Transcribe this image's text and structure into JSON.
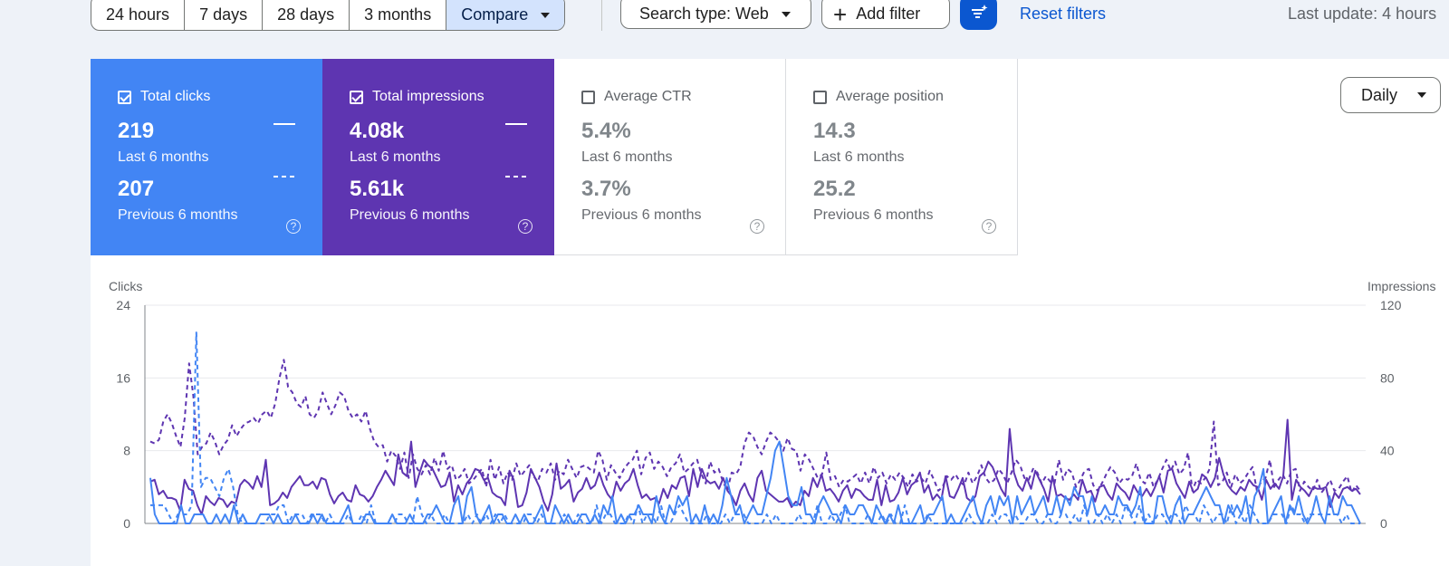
{
  "filters": {
    "date_ranges": [
      "24 hours",
      "7 days",
      "28 days",
      "3 months"
    ],
    "compare_label": "Compare",
    "search_type": "Search type: Web",
    "add_filter": "Add filter",
    "reset": "Reset filters",
    "last_update": "Last update: 4 hours"
  },
  "metrics": {
    "clicks": {
      "label": "Total clicks",
      "current": "219",
      "previous": "207",
      "period_current": "Last 6 months",
      "period_previous": "Previous 6 months",
      "checked": true,
      "color": "#4285f4"
    },
    "impressions": {
      "label": "Total impressions",
      "current": "4.08k",
      "previous": "5.61k",
      "period_current": "Last 6 months",
      "period_previous": "Previous 6 months",
      "checked": true,
      "color": "#5e35b1"
    },
    "ctr": {
      "label": "Average CTR",
      "current": "5.4%",
      "previous": "3.7%",
      "period_current": "Last 6 months",
      "period_previous": "Previous 6 months",
      "checked": false
    },
    "position": {
      "label": "Average position",
      "current": "14.3",
      "previous": "25.2",
      "period_current": "Last 6 months",
      "period_previous": "Previous 6 months",
      "checked": false
    }
  },
  "granularity": "Daily",
  "chart_data": {
    "type": "line",
    "ylabel": "Clicks",
    "ylabel_right": "Impressions",
    "yticks": [
      "24",
      "16",
      "8",
      "0"
    ],
    "yticks_right": [
      "120",
      "80",
      "40",
      "0"
    ],
    "ylim": [
      0,
      24
    ],
    "ylim_right": [
      0,
      120
    ],
    "grid": true,
    "series": [
      {
        "name": "Total clicks",
        "period": "last",
        "axis": "left",
        "style": "solid",
        "color": "#4285f4",
        "values": [
          5,
          1,
          0,
          0,
          0,
          0,
          0,
          2,
          0,
          0,
          1,
          1,
          1,
          0,
          0,
          1,
          0,
          1,
          0,
          2,
          0,
          1,
          0,
          0,
          0,
          1,
          1,
          1,
          0,
          1,
          0,
          0,
          0,
          1,
          0,
          0,
          0,
          1,
          0,
          1,
          0,
          0,
          0,
          0,
          1,
          2,
          0,
          0,
          0,
          1,
          1,
          0,
          0,
          0,
          0,
          1,
          0,
          0,
          0,
          1,
          0,
          0,
          0,
          1,
          1,
          2,
          1,
          0,
          0,
          2,
          3,
          0,
          3,
          4,
          1,
          0,
          1,
          2,
          0,
          1,
          1,
          0,
          0,
          1,
          0,
          1,
          0,
          0,
          1,
          2,
          0,
          0,
          2,
          1,
          0,
          1,
          0,
          0,
          1,
          1,
          0,
          1,
          0,
          2,
          1,
          3,
          0,
          1,
          0,
          1,
          1,
          2,
          1,
          1,
          0,
          3,
          1,
          0,
          2,
          1,
          3,
          2,
          3,
          0,
          1,
          0,
          2,
          0,
          1,
          0,
          2,
          5,
          3,
          1,
          2,
          0,
          1,
          2,
          1,
          1,
          3,
          5,
          8,
          9,
          6,
          3,
          2,
          2,
          4,
          1,
          1,
          0,
          2,
          3,
          2,
          1,
          1,
          0,
          2,
          1,
          1,
          2,
          2,
          1,
          0,
          2,
          1,
          0,
          1,
          0,
          2,
          0,
          0,
          0,
          1,
          2,
          0,
          1,
          1,
          2,
          3,
          0,
          1,
          0,
          0,
          1,
          2,
          3,
          1,
          0,
          2,
          3,
          1,
          3,
          2,
          3,
          0,
          3,
          1,
          2,
          3,
          1,
          2,
          3,
          1,
          1,
          3,
          1,
          3,
          2,
          4,
          3,
          3,
          1,
          3,
          1,
          1,
          2,
          1,
          1,
          3,
          2,
          2,
          1,
          2,
          4,
          0,
          0,
          0,
          3,
          3,
          1,
          0,
          2,
          3,
          0,
          1,
          1,
          2,
          3,
          4,
          3,
          2,
          2,
          0,
          2,
          1,
          2,
          1,
          3,
          0,
          3,
          4,
          6,
          0,
          1,
          2,
          3,
          0,
          2,
          1,
          3,
          1,
          0,
          1,
          3,
          1,
          0,
          3,
          1,
          1,
          3,
          2,
          2,
          1,
          0
        ]
      },
      {
        "name": "Total clicks",
        "period": "previous",
        "axis": "left",
        "style": "dashed",
        "color": "#4285f4",
        "values": [
          2,
          2,
          2,
          2,
          1,
          0,
          1,
          1,
          1,
          2,
          21,
          4,
          5,
          5,
          4,
          3,
          5,
          6,
          4,
          1,
          0,
          0,
          0,
          0,
          0,
          0,
          1,
          1,
          2,
          2,
          0,
          1,
          1,
          1,
          0,
          1,
          1,
          1,
          0,
          1,
          0,
          0,
          0,
          1,
          0,
          0,
          1,
          0,
          2,
          0,
          0,
          0,
          0,
          0,
          1,
          1,
          0,
          0,
          3,
          1,
          0,
          1,
          0,
          0,
          1,
          0,
          0,
          0,
          0,
          1,
          0,
          1,
          0,
          1,
          0,
          1,
          0,
          1,
          0,
          0,
          0,
          0,
          1,
          1,
          0,
          1,
          0,
          0,
          0,
          0,
          1,
          0,
          0,
          1,
          0,
          0,
          0,
          2,
          0,
          1,
          1,
          0,
          0,
          0,
          1,
          0,
          2,
          0,
          1,
          1,
          0,
          2,
          0,
          0,
          1,
          2,
          1,
          0,
          0,
          0,
          0,
          1,
          0,
          0,
          0,
          1,
          0,
          1,
          1,
          1,
          0,
          0,
          0,
          0,
          1,
          0,
          1,
          0,
          0,
          0,
          0,
          1,
          0,
          0,
          0,
          2,
          0,
          0,
          1,
          0,
          1,
          2,
          0,
          0,
          0,
          0,
          1,
          0,
          0,
          1,
          0,
          1,
          0,
          0,
          2,
          0,
          0,
          0,
          0,
          1,
          0,
          0,
          0,
          0,
          0,
          0,
          0,
          0,
          1,
          0,
          0,
          0,
          0,
          1,
          0,
          1,
          1,
          0,
          1,
          0,
          0,
          1,
          1,
          0,
          0,
          1,
          0,
          0,
          1,
          1,
          0,
          1,
          0,
          2,
          0,
          0,
          1,
          0,
          1,
          0,
          1,
          0,
          2,
          1,
          0,
          2,
          0,
          1,
          0,
          1,
          1,
          0,
          1,
          1,
          0,
          2,
          1,
          1,
          0,
          2,
          1,
          0,
          1,
          1,
          0,
          2,
          0,
          1,
          0,
          2,
          1,
          0,
          0,
          0,
          1,
          1,
          1,
          0,
          2,
          1,
          1,
          0,
          1,
          1,
          1,
          1,
          1,
          1,
          1,
          0,
          1,
          0,
          0,
          0
        ]
      },
      {
        "name": "Total impressions",
        "period": "last",
        "axis": "right",
        "style": "solid",
        "color": "#5e35b1",
        "values": [
          23,
          24,
          16,
          18,
          14,
          14,
          13,
          7,
          24,
          19,
          18,
          10,
          5,
          15,
          12,
          10,
          14,
          13,
          9,
          12,
          11,
          21,
          24,
          22,
          19,
          26,
          20,
          35,
          10,
          11,
          13,
          17,
          14,
          20,
          23,
          26,
          21,
          21,
          23,
          19,
          25,
          24,
          16,
          11,
          15,
          17,
          13,
          12,
          21,
          16,
          15,
          12,
          15,
          20,
          24,
          29,
          25,
          21,
          38,
          28,
          26,
          45,
          20,
          28,
          35,
          32,
          30,
          25,
          20,
          21,
          28,
          12,
          21,
          16,
          22,
          25,
          30,
          29,
          24,
          25,
          17,
          15,
          14,
          10,
          29,
          24,
          9,
          10,
          17,
          30,
          25,
          20,
          12,
          7,
          16,
          33,
          19,
          21,
          24,
          12,
          17,
          19,
          25,
          19,
          21,
          28,
          21,
          16,
          13,
          23,
          18,
          22,
          24,
          30,
          21,
          14,
          16,
          13,
          14,
          11,
          19,
          14,
          21,
          19,
          25,
          26,
          15,
          30,
          20,
          30,
          24,
          22,
          23,
          19,
          25,
          18,
          15,
          10,
          18,
          22,
          16,
          12,
          25,
          29,
          18,
          16,
          14,
          12,
          12,
          14,
          9,
          12,
          10,
          18,
          15,
          25,
          20,
          27,
          18,
          19,
          16,
          12,
          18,
          21,
          14,
          19,
          18,
          15,
          13,
          13,
          24,
          10,
          21,
          12,
          13,
          17,
          25,
          16,
          21,
          23,
          28,
          17,
          21,
          13,
          16,
          13,
          26,
          15,
          14,
          19,
          25,
          14,
          12,
          15,
          26,
          28,
          34,
          31,
          25,
          19,
          15,
          52,
          28,
          21,
          18,
          25,
          19,
          29,
          24,
          19,
          12,
          26,
          15,
          16,
          14,
          13,
          16,
          13,
          24,
          17,
          18,
          12,
          20,
          21,
          16,
          13,
          22,
          19,
          17,
          13,
          21,
          17,
          15,
          19,
          15,
          20,
          26,
          17,
          29,
          30,
          22,
          18,
          14,
          23,
          17,
          19,
          27,
          25,
          20,
          25,
          36,
          27,
          21,
          18,
          16,
          20,
          18,
          24,
          21,
          20,
          13,
          24,
          19,
          22,
          19,
          26,
          57,
          13,
          24,
          20,
          18,
          15,
          20,
          19,
          19,
          20,
          9,
          17,
          14,
          19,
          20,
          18,
          19,
          16
        ]
      },
      {
        "name": "Total impressions",
        "period": "previous",
        "axis": "right",
        "style": "dashed",
        "color": "#5e35b1",
        "values": [
          45,
          44,
          46,
          56,
          60,
          55,
          48,
          42,
          58,
          88,
          70,
          38,
          42,
          44,
          50,
          45,
          38,
          43,
          46,
          54,
          48,
          52,
          55,
          56,
          58,
          55,
          60,
          62,
          58,
          66,
          80,
          90,
          75,
          72,
          66,
          64,
          70,
          60,
          58,
          62,
          72,
          66,
          60,
          65,
          72,
          70,
          62,
          58,
          60,
          56,
          62,
          52,
          45,
          42,
          43,
          34,
          40,
          37,
          30,
          39,
          25,
          38,
          30,
          27,
          32,
          27,
          36,
          29,
          40,
          30,
          32,
          24,
          26,
          30,
          22,
          24,
          27,
          30,
          20,
          35,
          24,
          31,
          22,
          28,
          24,
          33,
          26,
          29,
          32,
          26,
          23,
          30,
          28,
          33,
          24,
          29,
          27,
          35,
          30,
          25,
          31,
          32,
          30,
          28,
          40,
          35,
          24,
          32,
          28,
          25,
          30,
          33,
          35,
          40,
          27,
          36,
          39,
          30,
          34,
          31,
          26,
          31,
          33,
          38,
          28,
          30,
          33,
          35,
          27,
          22,
          34,
          28,
          30,
          23,
          18,
          28,
          27,
          31,
          44,
          50,
          48,
          42,
          38,
          45,
          50,
          48,
          45,
          40,
          47,
          41,
          40,
          29,
          38,
          35,
          30,
          25,
          27,
          39,
          24,
          26,
          20,
          24,
          23,
          25,
          27,
          22,
          28,
          22,
          31,
          25,
          28,
          22,
          27,
          24,
          28,
          25,
          20,
          27,
          23,
          25,
          22,
          29,
          24,
          18,
          20,
          26,
          24,
          27,
          23,
          21,
          28,
          22,
          26,
          32,
          25,
          22,
          24,
          30,
          27,
          22,
          28,
          35,
          32,
          25,
          24,
          30,
          28,
          22,
          26,
          23,
          22,
          35,
          24,
          30,
          28,
          20,
          24,
          29,
          30,
          21,
          18,
          22,
          27,
          31,
          28,
          22,
          25,
          24,
          26,
          33,
          24,
          22,
          28,
          20,
          24,
          30,
          35,
          29,
          34,
          27,
          30,
          39,
          18,
          24,
          22,
          25,
          30,
          56,
          21,
          23,
          28,
          20,
          27,
          22,
          24,
          28,
          31,
          18,
          23,
          25,
          35,
          20,
          24,
          27,
          22,
          29,
          30,
          18,
          23,
          20,
          18,
          24,
          17,
          20,
          24,
          18,
          19,
          23,
          26,
          17,
          21,
          18
        ]
      }
    ]
  }
}
